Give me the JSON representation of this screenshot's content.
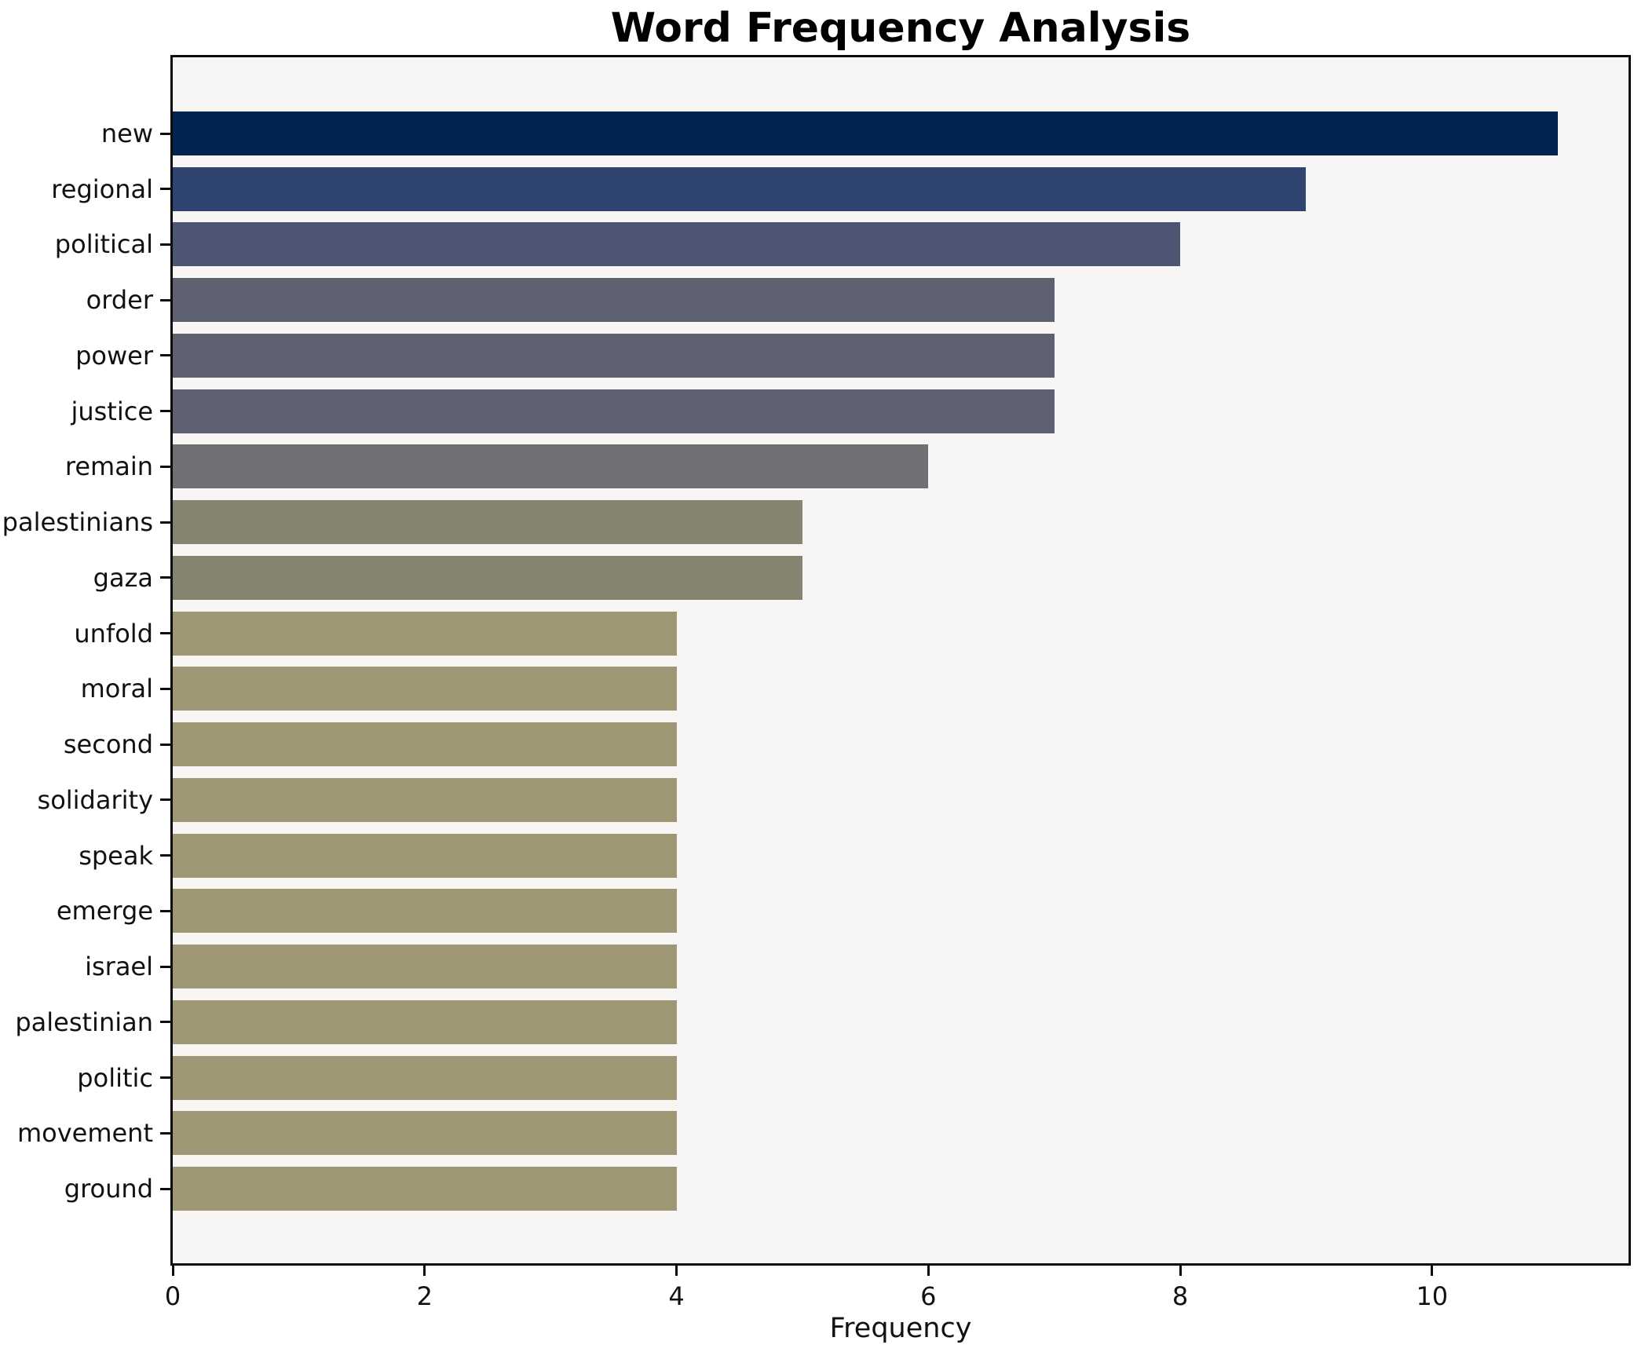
{
  "chart_data": {
    "type": "bar",
    "orientation": "horizontal",
    "title": "Word Frequency Analysis",
    "xlabel": "Frequency",
    "ylabel": "",
    "categories": [
      "new",
      "regional",
      "political",
      "order",
      "power",
      "justice",
      "remain",
      "palestinians",
      "gaza",
      "unfold",
      "moral",
      "second",
      "solidarity",
      "speak",
      "emerge",
      "israel",
      "palestinian",
      "politic",
      "movement",
      "ground"
    ],
    "values": [
      11,
      9,
      8,
      7,
      7,
      7,
      6,
      5,
      5,
      4,
      4,
      4,
      4,
      4,
      4,
      4,
      4,
      4,
      4,
      4
    ],
    "bar_colors": [
      "#022450",
      "#2F4471",
      "#4C5571",
      "#5E616F",
      "#5E616F",
      "#5E616F",
      "#6F7073",
      "#868471",
      "#868471",
      "#9F9673",
      "#9F9673",
      "#9F9673",
      "#9F9673",
      "#9F9673",
      "#9F9673",
      "#9F9673",
      "#9F9673",
      "#9F9673",
      "#9F9673",
      "#9F9673"
    ],
    "x_ticks": [
      0,
      2,
      4,
      6,
      8,
      10
    ],
    "xlim": [
      0,
      11.56
    ],
    "grid": false,
    "legend": null,
    "plot_bg": "#F7F6F5",
    "figure_bg": "#FFFFFF",
    "colormap_note": "cividis-style gradient, dark navy (highest) to olive (lowest)"
  }
}
